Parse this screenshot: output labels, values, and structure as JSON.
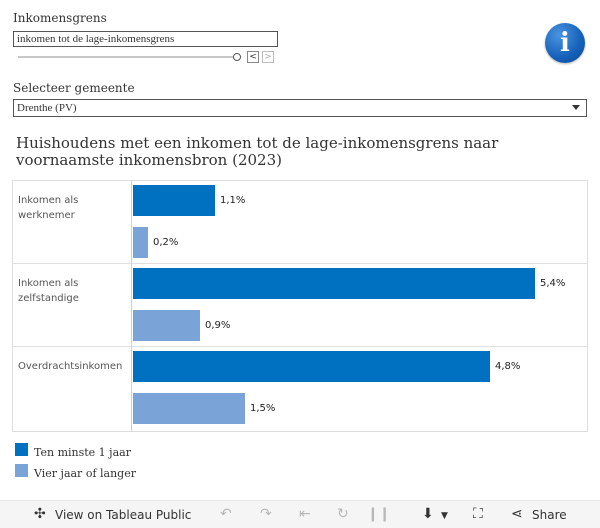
{
  "filters": {
    "income_threshold": {
      "label": "Inkomensgrens",
      "value": "inkomen tot de lage-inkomensgrens",
      "prev_symbol": "<",
      "next_symbol": ">"
    },
    "municipality": {
      "label": "Selecteer gemeente",
      "value": "Drenthe (PV)"
    }
  },
  "info_icon": {
    "symbol": "i"
  },
  "chart_data": {
    "type": "bar",
    "orientation": "horizontal",
    "title": "Huishoudens met een inkomen tot de lage-inkomensgrens naar voornaamste inkomensbron (2023)",
    "categories": [
      "Inkomen als werknemer",
      "Inkomen als zelfstandige",
      "Overdrachtsinkomen"
    ],
    "series": [
      {
        "name": "Ten minste 1 jaar",
        "color": "#0070c0",
        "values": [
          1.1,
          5.4,
          4.8
        ],
        "labels": [
          "1,1%",
          "5,4%",
          "4,8%"
        ]
      },
      {
        "name": "Vier jaar of langer",
        "color": "#7aa3d8",
        "values": [
          0.2,
          0.9,
          1.5
        ],
        "labels": [
          "0,2%",
          "0,9%",
          "1,5%"
        ]
      }
    ],
    "xlabel": "",
    "ylabel": "",
    "xlim": [
      0,
      6.0
    ],
    "grid": false,
    "legend_position": "bottom-left"
  },
  "toolbar": {
    "view_on_tableau": "View on Tableau Public",
    "share": "Share"
  }
}
